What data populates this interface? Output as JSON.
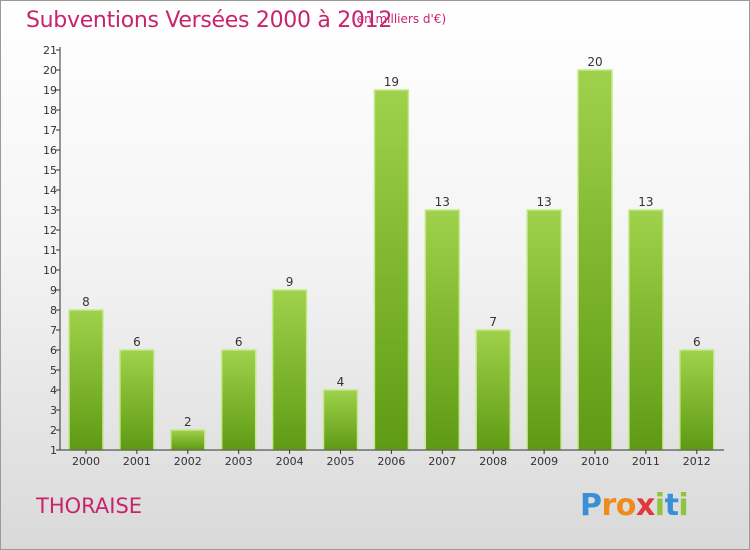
{
  "header": {
    "title": "Subventions Versées 2000 à 2012",
    "unit_note": "(en milliers d'€)"
  },
  "footer": {
    "commune": "THORAISE",
    "logo_letters": [
      {
        "ch": "P",
        "color": "#3a8fd6"
      },
      {
        "ch": "r",
        "color": "#f08a1c"
      },
      {
        "ch": "o",
        "color": "#f08a1c"
      },
      {
        "ch": "x",
        "color": "#e0383c"
      },
      {
        "ch": "i",
        "color": "#8cc63e"
      },
      {
        "ch": "t",
        "color": "#3a8fd6"
      },
      {
        "ch": "i",
        "color": "#8cc63e"
      }
    ]
  },
  "colors": {
    "title": "#c8246e",
    "bar_top": "#9fd24a",
    "bar_bottom": "#5f9a14",
    "bar_edge": "#c6e88e",
    "axis": "#333333"
  },
  "chart_data": {
    "type": "bar",
    "title": "Subventions Versées 2000 à 2012",
    "subtitle": "(en milliers d'€)",
    "categories": [
      "2000",
      "2001",
      "2002",
      "2003",
      "2004",
      "2005",
      "2006",
      "2007",
      "2008",
      "2009",
      "2010",
      "2011",
      "2012"
    ],
    "values": [
      8,
      6,
      2,
      6,
      9,
      4,
      19,
      13,
      7,
      13,
      20,
      13,
      6
    ],
    "xlabel": "",
    "ylabel": "",
    "ylim": [
      1,
      21
    ],
    "yticks": [
      1,
      2,
      3,
      4,
      5,
      6,
      7,
      8,
      9,
      10,
      11,
      12,
      13,
      14,
      15,
      16,
      17,
      18,
      19,
      20,
      21
    ],
    "grid": false,
    "legend": "none"
  }
}
